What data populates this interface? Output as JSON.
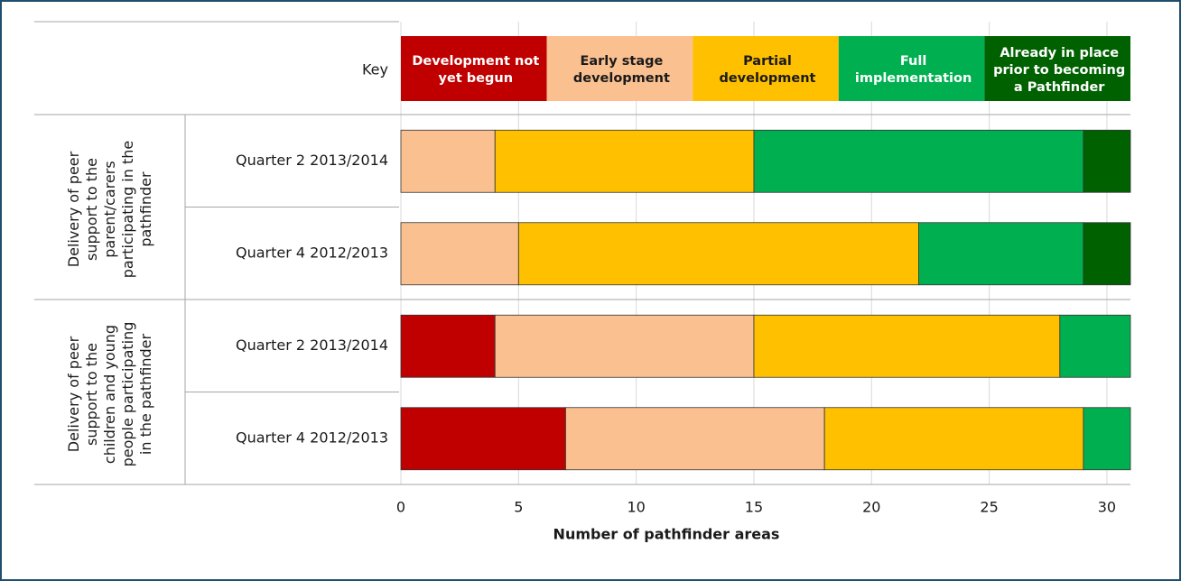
{
  "chart_data": {
    "type": "stacked_barh",
    "key_label": "Key",
    "x_label": "Number of pathfinder areas",
    "group_labels": [
      [
        "Delivery of peer",
        "support to the",
        "parent/carers",
        "participating in the",
        "pathfinder"
      ],
      [
        "Delivery of peer",
        "support to the",
        "children and young",
        "people participating",
        "in the pathfinder"
      ]
    ],
    "categories": [
      "Quarter 2 2013/2014",
      "Quarter 4  2012/2013",
      "Quarter 2 2013/2014",
      "Quarter 4  2012/2013"
    ],
    "series": [
      {
        "name": "Development not yet begun",
        "color": "#c00000",
        "label_color": "#ffffff",
        "values": [
          0,
          0,
          4,
          7
        ]
      },
      {
        "name": "Early stage development",
        "color": "#fac090",
        "label_color": "#1a1a1a",
        "values": [
          4,
          5,
          11,
          11
        ]
      },
      {
        "name": "Partial development",
        "color": "#ffc000",
        "label_color": "#1a1a1a",
        "values": [
          11,
          17,
          13,
          11
        ]
      },
      {
        "name": "Full implementation",
        "color": "#00b050",
        "label_color": "#ffffff",
        "values": [
          14,
          7,
          3,
          2
        ]
      },
      {
        "name": "Already in place prior to becoming a Pathfinder",
        "color": "#006100",
        "label_color": "#ffffff",
        "values": [
          2,
          2,
          0,
          0
        ]
      }
    ],
    "xlim": [
      0,
      31
    ],
    "xticks": [
      0,
      5,
      10,
      15,
      20,
      25,
      30
    ],
    "grid": true
  }
}
